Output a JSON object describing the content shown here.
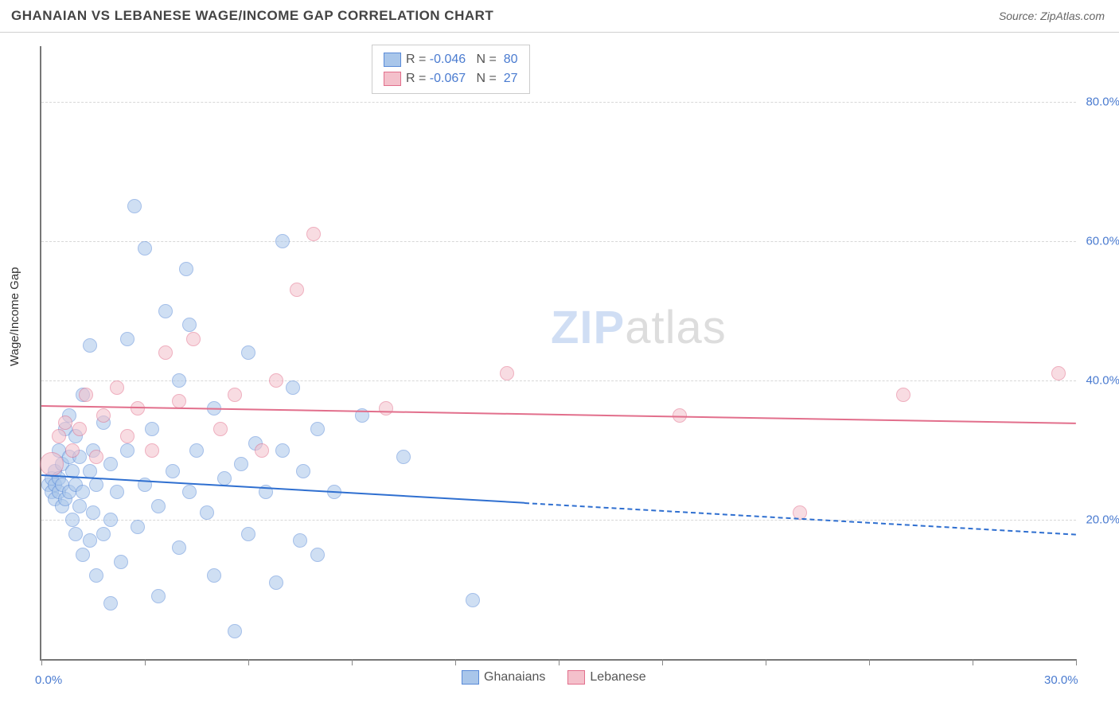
{
  "header": {
    "title": "GHANAIAN VS LEBANESE WAGE/INCOME GAP CORRELATION CHART",
    "source": "Source: ZipAtlas.com"
  },
  "chart": {
    "type": "scatter",
    "ylabel": "Wage/Income Gap",
    "background_color": "#ffffff",
    "grid_color": "#d8d8d8",
    "axis_color": "#777777",
    "label_color": "#4a7bd0",
    "x": {
      "min": 0.0,
      "max": 30.0,
      "ticks": [
        0.0,
        3.0,
        6.0,
        9.0,
        12.0,
        15.0,
        18.0,
        21.0,
        24.0,
        27.0,
        30.0
      ],
      "labeled_ticks": [
        0.0,
        30.0
      ],
      "labels": [
        "0.0%",
        "30.0%"
      ]
    },
    "y": {
      "min": 0.0,
      "max": 88.0,
      "grid_ticks": [
        20.0,
        40.0,
        60.0,
        80.0
      ],
      "labels": [
        "20.0%",
        "40.0%",
        "60.0%",
        "80.0%"
      ]
    },
    "series": [
      {
        "name": "Ghanaians",
        "fill_color": "#a9c6ea",
        "stroke_color": "#5a8bd8",
        "fill_opacity": 0.55,
        "marker_radius": 8,
        "R": "-0.046",
        "N": "80",
        "trend": {
          "y_at_xmin": 26.5,
          "y_at_xmax": 18.0,
          "solid_until_x": 14.0,
          "color": "#2f6fd0",
          "width": 2.5
        },
        "points": [
          [
            0.2,
            25
          ],
          [
            0.3,
            24
          ],
          [
            0.3,
            26
          ],
          [
            0.4,
            23
          ],
          [
            0.4,
            25
          ],
          [
            0.4,
            27
          ],
          [
            0.5,
            24
          ],
          [
            0.5,
            26
          ],
          [
            0.5,
            30
          ],
          [
            0.6,
            22
          ],
          [
            0.6,
            25
          ],
          [
            0.6,
            28
          ],
          [
            0.7,
            23
          ],
          [
            0.7,
            33
          ],
          [
            0.8,
            24
          ],
          [
            0.8,
            29
          ],
          [
            0.8,
            35
          ],
          [
            0.9,
            20
          ],
          [
            0.9,
            27
          ],
          [
            1.0,
            18
          ],
          [
            1.0,
            25
          ],
          [
            1.0,
            32
          ],
          [
            1.1,
            22
          ],
          [
            1.1,
            29
          ],
          [
            1.2,
            15
          ],
          [
            1.2,
            24
          ],
          [
            1.2,
            38
          ],
          [
            1.4,
            17
          ],
          [
            1.4,
            27
          ],
          [
            1.4,
            45
          ],
          [
            1.5,
            21
          ],
          [
            1.5,
            30
          ],
          [
            1.6,
            12
          ],
          [
            1.6,
            25
          ],
          [
            1.8,
            18
          ],
          [
            1.8,
            34
          ],
          [
            2.0,
            8
          ],
          [
            2.0,
            20
          ],
          [
            2.0,
            28
          ],
          [
            2.2,
            24
          ],
          [
            2.3,
            14
          ],
          [
            2.5,
            30
          ],
          [
            2.5,
            46
          ],
          [
            2.7,
            65
          ],
          [
            2.8,
            19
          ],
          [
            3.0,
            25
          ],
          [
            3.0,
            59
          ],
          [
            3.2,
            33
          ],
          [
            3.4,
            9
          ],
          [
            3.4,
            22
          ],
          [
            3.6,
            50
          ],
          [
            3.8,
            27
          ],
          [
            4.0,
            16
          ],
          [
            4.0,
            40
          ],
          [
            4.2,
            56
          ],
          [
            4.3,
            24
          ],
          [
            4.3,
            48
          ],
          [
            4.5,
            30
          ],
          [
            4.8,
            21
          ],
          [
            5.0,
            12
          ],
          [
            5.0,
            36
          ],
          [
            5.3,
            26
          ],
          [
            5.6,
            4
          ],
          [
            5.8,
            28
          ],
          [
            6.0,
            18
          ],
          [
            6.0,
            44
          ],
          [
            6.2,
            31
          ],
          [
            6.5,
            24
          ],
          [
            6.8,
            11
          ],
          [
            7.0,
            60
          ],
          [
            7.0,
            30
          ],
          [
            7.3,
            39
          ],
          [
            7.5,
            17
          ],
          [
            7.6,
            27
          ],
          [
            8.0,
            15
          ],
          [
            8.0,
            33
          ],
          [
            8.5,
            24
          ],
          [
            9.3,
            35
          ],
          [
            10.5,
            29
          ],
          [
            12.5,
            8.5
          ]
        ]
      },
      {
        "name": "Lebanese",
        "fill_color": "#f4c0cb",
        "stroke_color": "#e26f8c",
        "fill_opacity": 0.55,
        "marker_radius": 8,
        "R": "-0.067",
        "N": "27",
        "trend": {
          "y_at_xmin": 36.5,
          "y_at_xmax": 34.0,
          "solid_until_x": 30.0,
          "color": "#e26f8c",
          "width": 2.5
        },
        "points": [
          [
            0.3,
            28,
            14
          ],
          [
            0.5,
            32,
            8
          ],
          [
            0.7,
            34,
            8
          ],
          [
            0.9,
            30,
            8
          ],
          [
            1.1,
            33,
            8
          ],
          [
            1.3,
            38,
            8
          ],
          [
            1.6,
            29,
            8
          ],
          [
            1.8,
            35,
            8
          ],
          [
            2.2,
            39,
            8
          ],
          [
            2.5,
            32,
            8
          ],
          [
            2.8,
            36,
            8
          ],
          [
            3.2,
            30,
            8
          ],
          [
            3.6,
            44,
            8
          ],
          [
            4.0,
            37,
            8
          ],
          [
            4.4,
            46,
            8
          ],
          [
            5.2,
            33,
            8
          ],
          [
            5.6,
            38,
            8
          ],
          [
            6.4,
            30,
            8
          ],
          [
            6.8,
            40,
            8
          ],
          [
            7.4,
            53,
            8
          ],
          [
            7.9,
            61,
            8
          ],
          [
            10.0,
            36,
            8
          ],
          [
            13.5,
            41,
            8
          ],
          [
            18.5,
            35,
            8
          ],
          [
            22.0,
            21,
            8
          ],
          [
            25.0,
            38,
            8
          ],
          [
            29.5,
            41,
            8
          ]
        ]
      }
    ],
    "legend": {
      "stats_box": {
        "font_size": 16,
        "border_color": "#cccccc"
      },
      "bottom": {
        "items": [
          {
            "label": "Ghanaians",
            "fill": "#a9c6ea",
            "stroke": "#5a8bd8"
          },
          {
            "label": "Lebanese",
            "fill": "#f4c0cb",
            "stroke": "#e26f8c"
          }
        ]
      }
    },
    "watermark": {
      "text_bold": "ZIP",
      "text_light": "atlas"
    }
  }
}
